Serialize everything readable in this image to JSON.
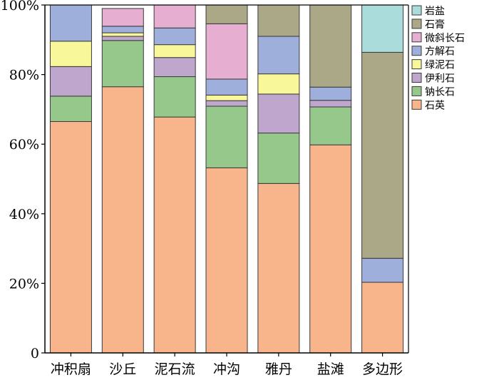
{
  "chart_data": {
    "type": "bar",
    "stacked": true,
    "normalized": true,
    "categories": [
      "冲积扇",
      "沙丘",
      "泥石流",
      "冲沟",
      "雅丹",
      "盐滩",
      "多边形"
    ],
    "y_ticks": [
      "0",
      "20%",
      "40%",
      "60%",
      "80%",
      "100%"
    ],
    "ylim": [
      0,
      100
    ],
    "legend_position": "right-top",
    "series": [
      {
        "name": "石英",
        "color": "#f8b48a",
        "values": [
          66.5,
          76.5,
          67.8,
          53.2,
          48.7,
          59.8,
          20.3
        ]
      },
      {
        "name": "钠长石",
        "color": "#96c88c",
        "values": [
          7.3,
          13.3,
          11.6,
          17.7,
          14.5,
          10.9,
          0
        ]
      },
      {
        "name": "伊利石",
        "color": "#bea6cc",
        "values": [
          8.5,
          1.2,
          5.5,
          1.6,
          11.2,
          1.9,
          0
        ]
      },
      {
        "name": "绿泥石",
        "color": "#f8f79a",
        "values": [
          7.3,
          1.0,
          3.7,
          1.6,
          5.8,
          0,
          0
        ]
      },
      {
        "name": "方解石",
        "color": "#9fafdc",
        "values": [
          10.4,
          1.9,
          4.8,
          4.6,
          10.8,
          3.8,
          6.9
        ]
      },
      {
        "name": "微斜长石",
        "color": "#e6aed0",
        "values": [
          0,
          5.1,
          6.6,
          15.9,
          0,
          0,
          0
        ]
      },
      {
        "name": "石膏",
        "color": "#aaa887",
        "values": [
          0,
          0,
          0,
          5.4,
          9.0,
          23.6,
          59.2
        ]
      },
      {
        "name": "岩盐",
        "color": "#aadcdc",
        "values": [
          0,
          0,
          0,
          0,
          0,
          0,
          13.6
        ]
      }
    ]
  }
}
